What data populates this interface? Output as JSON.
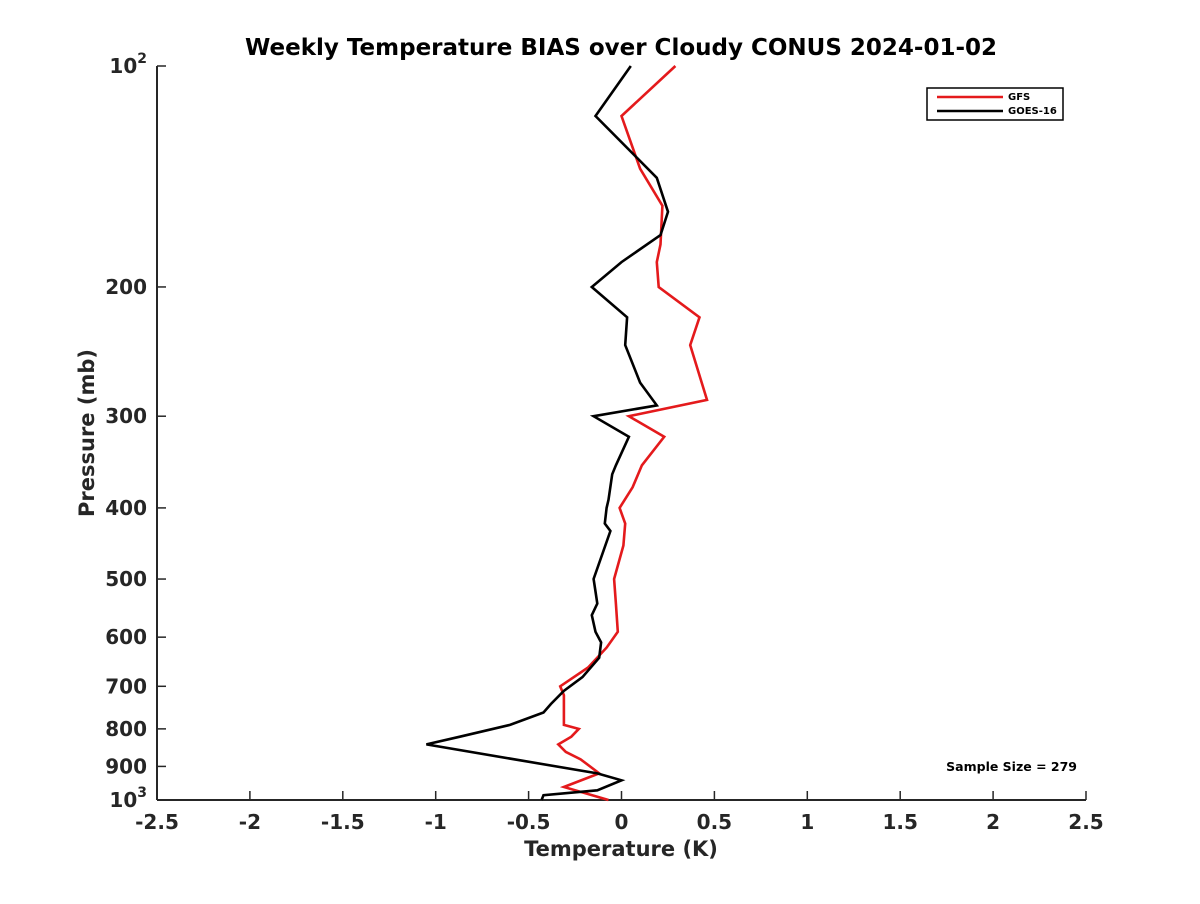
{
  "chart_data": {
    "type": "line",
    "title": "Weekly Temperature BIAS over Cloudy CONUS 2024-01-02",
    "xlabel": "Temperature (K)",
    "ylabel": "Pressure (mb)",
    "xlim": [
      -2.5,
      2.5
    ],
    "ylim": [
      100,
      1000
    ],
    "yscale": "log",
    "y_reversed": true,
    "grid": false,
    "legend_position": "top-right",
    "xticks": [
      -2.5,
      -2,
      -1.5,
      -1,
      -0.5,
      0,
      0.5,
      1,
      1.5,
      2,
      2.5
    ],
    "xtick_labels": [
      "-2.5",
      "-2",
      "-1.5",
      "-1",
      "-0.5",
      "0",
      "0.5",
      "1",
      "1.5",
      "2",
      "2.5"
    ],
    "yticks": [
      100,
      200,
      300,
      400,
      500,
      600,
      700,
      800,
      900,
      1000
    ],
    "ytick_labels": [
      {
        "base": "10",
        "exp": "2"
      },
      {
        "base": "200",
        "exp": ""
      },
      {
        "base": "300",
        "exp": ""
      },
      {
        "base": "400",
        "exp": ""
      },
      {
        "base": "500",
        "exp": ""
      },
      {
        "base": "600",
        "exp": ""
      },
      {
        "base": "700",
        "exp": ""
      },
      {
        "base": "800",
        "exp": ""
      },
      {
        "base": "900",
        "exp": ""
      },
      {
        "base": "10",
        "exp": "3"
      }
    ],
    "annotation": "Sample Size = 279",
    "series": [
      {
        "name": "GFS",
        "color": "#e41a1c",
        "x": [
          0.29,
          0.0,
          0.1,
          0.22,
          0.21,
          0.19,
          0.2,
          0.42,
          0.37,
          0.46,
          0.04,
          0.23,
          0.11,
          0.06,
          -0.01,
          0.02,
          0.01,
          -0.04,
          -0.03,
          -0.02,
          -0.08,
          -0.18,
          -0.33,
          -0.31,
          -0.31,
          -0.31,
          -0.23,
          -0.27,
          -0.34,
          -0.3,
          -0.22,
          -0.12,
          -0.31,
          -0.07
        ],
        "y": [
          100,
          117,
          138,
          155,
          175,
          185,
          200,
          220,
          240,
          285,
          300,
          320,
          350,
          375,
          400,
          420,
          450,
          500,
          540,
          590,
          620,
          660,
          700,
          720,
          750,
          790,
          800,
          820,
          840,
          860,
          880,
          920,
          960,
          1000
        ]
      },
      {
        "name": "GOES-16",
        "color": "#000000",
        "x": [
          0.05,
          -0.14,
          0.19,
          0.25,
          0.21,
          0.0,
          -0.16,
          0.03,
          0.02,
          0.1,
          0.19,
          -0.15,
          0.04,
          -0.03,
          -0.05,
          -0.07,
          -0.08,
          -0.09,
          -0.06,
          -0.15,
          -0.14,
          -0.13,
          -0.16,
          -0.14,
          -0.11,
          -0.12,
          -0.21,
          -0.31,
          -0.38,
          -0.42,
          -0.6,
          -0.87,
          -1.05,
          -0.13,
          0.0,
          -0.13,
          -0.42,
          -0.43
        ],
        "y": [
          100,
          117,
          142,
          158,
          170,
          185,
          200,
          220,
          240,
          270,
          290,
          300,
          320,
          350,
          360,
          390,
          400,
          420,
          430,
          500,
          520,
          540,
          560,
          590,
          610,
          640,
          680,
          710,
          740,
          760,
          790,
          820,
          840,
          920,
          940,
          970,
          985,
          1000
        ]
      }
    ]
  }
}
